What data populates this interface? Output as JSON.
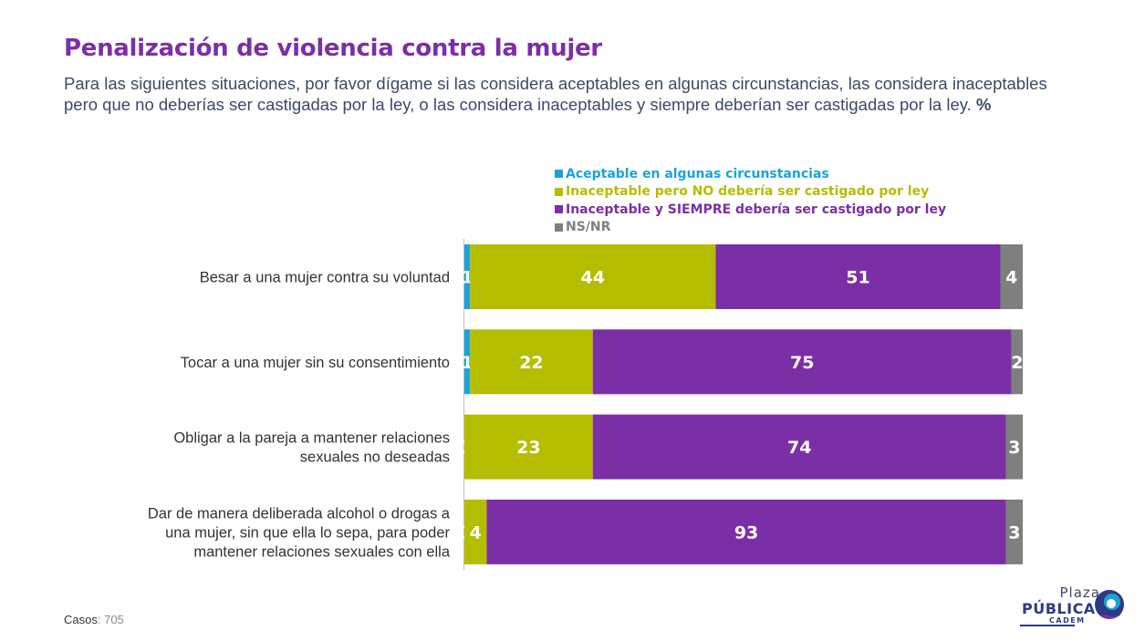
{
  "header": {
    "title": "Penalización de violencia contra la mujer",
    "subtitle": "Para las siguientes situaciones, por favor dígame si las considera aceptables en algunas circunstancias, las considera inaceptables pero que no deberías ser castigadas por la ley, o las considera inaceptables y siempre deberían ser castigadas por la ley.",
    "subtitle_unit": "%"
  },
  "chart_data": {
    "type": "bar",
    "orientation": "horizontal",
    "stacked": true,
    "unit": "%",
    "categories": [
      "Besar a una mujer contra su voluntad",
      "Tocar a una mujer sin su consentimiento",
      "Obligar a la pareja a mantener relaciones sexuales no deseadas",
      "Dar de manera deliberada alcohol o drogas a una mujer, sin que ella lo sepa, para poder mantener relaciones sexuales con ella"
    ],
    "category_lines": [
      [
        "Besar a una mujer contra su voluntad"
      ],
      [
        "Tocar a una mujer sin su consentimiento"
      ],
      [
        "Obligar a la pareja a mantener relaciones",
        "sexuales no deseadas"
      ],
      [
        "Dar de manera deliberada alcohol o drogas a",
        "una mujer, sin que ella lo sepa, para poder",
        "mantener relaciones sexuales con ella"
      ]
    ],
    "series": [
      {
        "name": "Aceptable en algunas circunstancias",
        "color": "#1BA3D9",
        "values": [
          1,
          1,
          0,
          0
        ]
      },
      {
        "name": "Inaceptable pero NO debería ser castigado por ley",
        "color": "#B5BD00",
        "values": [
          44,
          22,
          23,
          4
        ]
      },
      {
        "name": "Inaceptable y SIEMPRE debería ser castigado por ley",
        "color": "#7B2FA6",
        "values": [
          51,
          75,
          74,
          93
        ]
      },
      {
        "name": "NS/NR",
        "color": "#7F7F7F",
        "values": [
          4,
          2,
          3,
          3
        ]
      }
    ],
    "xlim": [
      0,
      100
    ],
    "legend_position": "top"
  },
  "footer": {
    "cases_label": "Casos",
    "cases_value": ": 705"
  },
  "logo": {
    "line1": "Plaza",
    "line2": "PÚBLICA",
    "line3": "CADEM"
  }
}
